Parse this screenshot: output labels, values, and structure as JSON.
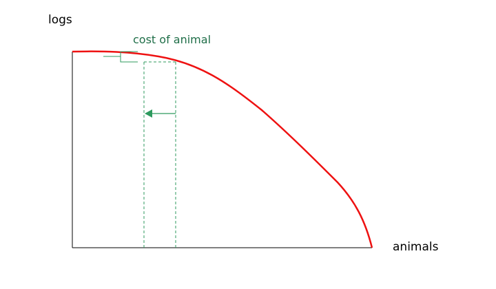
{
  "axes": {
    "y_label": "logs",
    "x_label": "animals",
    "color": "#000000"
  },
  "curve": {
    "description_kind": "production possibilities frontier",
    "color": "#ee1111"
  },
  "annotation": {
    "label": "cost of animal",
    "color": "#2e9a5e",
    "label_color": "#1f6e48"
  }
}
